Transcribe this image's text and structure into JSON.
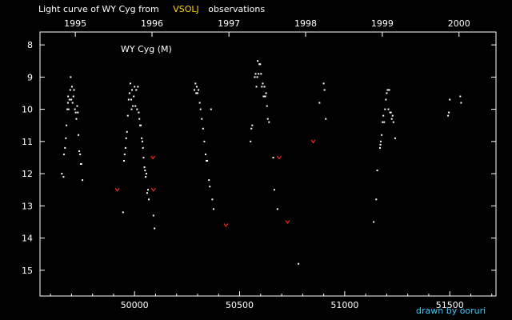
{
  "chart_data": {
    "type": "scatter",
    "title_parts": [
      {
        "text": "Light curve of WY Cyg from",
        "color": "#ffffff"
      },
      {
        "text": "VSOLJ",
        "color": "#ffd700"
      },
      {
        "text": "observations",
        "color": "#ffffff"
      }
    ],
    "star_label": "WY Cyg (M)",
    "credit": "drawn by ooruri",
    "colors": {
      "background": "#000000",
      "axes": "#ffffff",
      "points": "#ffffff",
      "upper_limits": "#ff2020",
      "credit": "#33ccff",
      "highlight": "#ffd700"
    },
    "xlim": [
      49550,
      51720
    ],
    "ylim": [
      15.8,
      7.6
    ],
    "y_inverted": true,
    "x_ticks": [
      {
        "value": 50000,
        "label": "50000"
      },
      {
        "value": 50500,
        "label": "50500"
      },
      {
        "value": 51000,
        "label": "51000"
      },
      {
        "value": 51500,
        "label": "51500"
      }
    ],
    "x_minor_step": 100,
    "year_ticks": [
      {
        "jd": 49718,
        "label": "1995"
      },
      {
        "jd": 50083,
        "label": "1996"
      },
      {
        "jd": 50449,
        "label": "1997"
      },
      {
        "jd": 50814,
        "label": "1998"
      },
      {
        "jd": 51179,
        "label": "1999"
      },
      {
        "jd": 51544,
        "label": "2000"
      }
    ],
    "y_ticks": [
      {
        "value": 8,
        "label": "8"
      },
      {
        "value": 9,
        "label": "9"
      },
      {
        "value": 10,
        "label": "10"
      },
      {
        "value": 11,
        "label": "11"
      },
      {
        "value": 12,
        "label": "12"
      },
      {
        "value": 13,
        "label": "13"
      },
      {
        "value": 14,
        "label": "14"
      },
      {
        "value": 15,
        "label": "15"
      }
    ],
    "series": [
      {
        "kind": "observation",
        "points": [
          [
            49654,
            12.0
          ],
          [
            49662,
            12.1
          ],
          [
            49664,
            11.4
          ],
          [
            49669,
            11.2
          ],
          [
            49673,
            10.9
          ],
          [
            49676,
            10.5
          ],
          [
            49680,
            10.0
          ],
          [
            49683,
            9.8
          ],
          [
            49684,
            9.6
          ],
          [
            49686,
            10.0
          ],
          [
            49690,
            9.7
          ],
          [
            49694,
            9.4
          ],
          [
            49696,
            9.0
          ],
          [
            49699,
            9.7
          ],
          [
            49702,
            9.3
          ],
          [
            49705,
            9.8
          ],
          [
            49709,
            9.6
          ],
          [
            49712,
            9.4
          ],
          [
            49716,
            10.0
          ],
          [
            49720,
            10.1
          ],
          [
            49723,
            10.3
          ],
          [
            49727,
            9.9
          ],
          [
            49730,
            10.1
          ],
          [
            49733,
            10.8
          ],
          [
            49737,
            11.3
          ],
          [
            49741,
            11.4
          ],
          [
            49744,
            11.7
          ],
          [
            49747,
            11.7
          ],
          [
            49752,
            12.2
          ],
          [
            49945,
            13.2
          ],
          [
            49950,
            11.6
          ],
          [
            49953,
            11.4
          ],
          [
            49957,
            11.2
          ],
          [
            49960,
            10.9
          ],
          [
            49964,
            10.7
          ],
          [
            49968,
            10.2
          ],
          [
            49972,
            9.7
          ],
          [
            49976,
            9.5
          ],
          [
            49980,
            9.2
          ],
          [
            49984,
            9.7
          ],
          [
            49986,
            10.0
          ],
          [
            49988,
            9.4
          ],
          [
            49992,
            9.9
          ],
          [
            49996,
            9.6
          ],
          [
            50000,
            9.3
          ],
          [
            50004,
            9.9
          ],
          [
            50008,
            9.4
          ],
          [
            50012,
            10.0
          ],
          [
            50016,
            9.3
          ],
          [
            50020,
            10.1
          ],
          [
            50023,
            10.3
          ],
          [
            50026,
            10.5
          ],
          [
            50030,
            10.5
          ],
          [
            50034,
            10.9
          ],
          [
            50037,
            11.0
          ],
          [
            50040,
            11.2
          ],
          [
            50043,
            11.5
          ],
          [
            50047,
            11.8
          ],
          [
            50050,
            11.9
          ],
          [
            50053,
            12.1
          ],
          [
            50056,
            12.0
          ],
          [
            50060,
            12.6
          ],
          [
            50064,
            12.5
          ],
          [
            50068,
            12.8
          ],
          [
            50090,
            13.3
          ],
          [
            50095,
            13.7
          ],
          [
            50285,
            9.4
          ],
          [
            50290,
            9.2
          ],
          [
            50293,
            9.5
          ],
          [
            50296,
            9.3
          ],
          [
            50300,
            9.5
          ],
          [
            50304,
            9.4
          ],
          [
            50310,
            9.8
          ],
          [
            50314,
            10.0
          ],
          [
            50320,
            10.3
          ],
          [
            50326,
            10.6
          ],
          [
            50332,
            11.0
          ],
          [
            50338,
            11.4
          ],
          [
            50342,
            11.6
          ],
          [
            50346,
            11.6
          ],
          [
            50354,
            12.2
          ],
          [
            50358,
            12.4
          ],
          [
            50364,
            10.0
          ],
          [
            50370,
            12.8
          ],
          [
            50376,
            13.1
          ],
          [
            50552,
            11.0
          ],
          [
            50556,
            10.6
          ],
          [
            50560,
            10.5
          ],
          [
            50572,
            9.0
          ],
          [
            50576,
            8.9
          ],
          [
            50580,
            9.3
          ],
          [
            50584,
            9.0
          ],
          [
            50586,
            8.5
          ],
          [
            50590,
            8.9
          ],
          [
            50594,
            8.6
          ],
          [
            50598,
            8.6
          ],
          [
            50602,
            8.9
          ],
          [
            50606,
            9.3
          ],
          [
            50610,
            9.2
          ],
          [
            50614,
            9.6
          ],
          [
            50618,
            9.3
          ],
          [
            50622,
            9.6
          ],
          [
            50626,
            9.5
          ],
          [
            50630,
            9.9
          ],
          [
            50634,
            10.3
          ],
          [
            50640,
            10.4
          ],
          [
            50660,
            11.5
          ],
          [
            50665,
            12.5
          ],
          [
            50680,
            13.1
          ],
          [
            50780,
            14.8
          ],
          [
            50880,
            9.8
          ],
          [
            50900,
            9.2
          ],
          [
            50904,
            9.4
          ],
          [
            50910,
            10.3
          ],
          [
            51138,
            13.5
          ],
          [
            51150,
            12.8
          ],
          [
            51155,
            11.9
          ],
          [
            51168,
            11.2
          ],
          [
            51170,
            11.1
          ],
          [
            51172,
            11.0
          ],
          [
            51176,
            10.8
          ],
          [
            51180,
            10.4
          ],
          [
            51184,
            10.2
          ],
          [
            51188,
            10.4
          ],
          [
            51192,
            10.0
          ],
          [
            51196,
            9.7
          ],
          [
            51200,
            9.5
          ],
          [
            51204,
            9.4
          ],
          [
            51208,
            10.0
          ],
          [
            51212,
            9.4
          ],
          [
            51216,
            10.1
          ],
          [
            51220,
            10.1
          ],
          [
            51224,
            10.3
          ],
          [
            51228,
            10.2
          ],
          [
            51232,
            10.4
          ],
          [
            51240,
            10.9
          ],
          [
            51492,
            10.2
          ],
          [
            51496,
            10.1
          ],
          [
            51500,
            9.7
          ],
          [
            51550,
            9.6
          ],
          [
            51554,
            9.8
          ]
        ]
      },
      {
        "kind": "fainter-than",
        "points": [
          [
            49918,
            12.5
          ],
          [
            50087,
            11.5
          ],
          [
            50090,
            12.5
          ],
          [
            50435,
            13.6
          ],
          [
            50688,
            11.5
          ],
          [
            50728,
            13.5
          ],
          [
            50850,
            11.0
          ]
        ]
      }
    ]
  }
}
